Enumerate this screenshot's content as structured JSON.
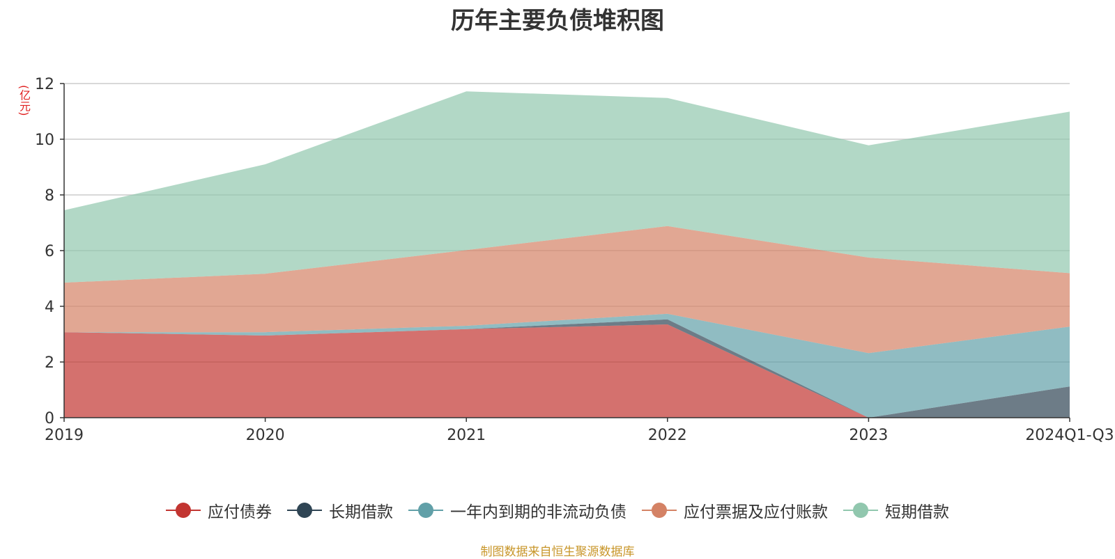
{
  "chart_data": {
    "type": "area",
    "title": "历年主要负债堆积图",
    "unit_label": "(亿元)",
    "x": [
      "2019",
      "2020",
      "2021",
      "2022",
      "2023",
      "2024Q1-Q3"
    ],
    "ylim": [
      0,
      12
    ],
    "yticks": [
      0,
      2,
      4,
      6,
      8,
      10,
      12
    ],
    "stacked": true,
    "grid": true,
    "legend_position": "bottom",
    "series": [
      {
        "name": "应付债券",
        "color": "#c23531",
        "values": [
          3.07,
          2.95,
          3.18,
          3.35,
          0.0,
          0.0
        ]
      },
      {
        "name": "长期借款",
        "color": "#2f4554",
        "values": [
          0.0,
          0.0,
          0.0,
          0.18,
          0.0,
          1.12
        ]
      },
      {
        "name": "一年内到期的非流动负债",
        "color": "#61a0a8",
        "values": [
          0.0,
          0.12,
          0.12,
          0.2,
          2.32,
          2.15
        ]
      },
      {
        "name": "应付票据及应付账款",
        "color": "#d48265",
        "values": [
          1.78,
          2.1,
          2.72,
          3.15,
          3.43,
          1.92
        ]
      },
      {
        "name": "短期借款",
        "color": "#91c7ae",
        "values": [
          2.6,
          3.93,
          5.7,
          4.6,
          4.03,
          5.8
        ]
      }
    ]
  },
  "source_note": "制图数据来自恒生聚源数据库"
}
